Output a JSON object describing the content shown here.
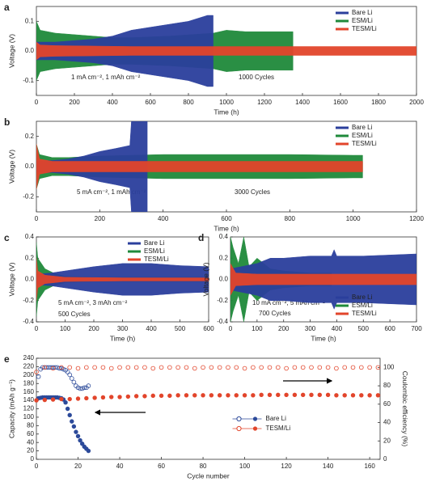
{
  "chart_data": [
    {
      "type": "area",
      "panel_label": "a",
      "x_label": "Time (h)",
      "y_label": "Voltage (V)",
      "annotations": [
        "1 mA cm⁻², 1 mAh cm⁻²",
        "1000 Cycles"
      ],
      "xlim": [
        0,
        2000
      ],
      "xticks": [
        0,
        200,
        400,
        600,
        800,
        1000,
        1200,
        1400,
        1600,
        1800,
        2000
      ],
      "ylim": [
        -0.15,
        0.15
      ],
      "yticks": [
        -0.1,
        {
          "value": 0,
          "label": "0.0"
        },
        0.1
      ],
      "legend": "upper right",
      "series": [
        {
          "name": "Bare Li",
          "color": "#2b3f9c",
          "x": [
            0,
            100,
            200,
            300,
            400,
            500,
            600,
            700,
            800,
            900,
            930
          ],
          "values": [
            0.03,
            0.03,
            0.035,
            0.04,
            0.05,
            0.07,
            0.08,
            0.09,
            0.1,
            0.12,
            0.12
          ]
        },
        {
          "name": "ESM/Li",
          "color": "#1f8a3b",
          "x": [
            0,
            20,
            100,
            200,
            300,
            400,
            500,
            700,
            930,
            1000,
            1100,
            1200,
            1300,
            1350
          ],
          "values": [
            0.1,
            0.07,
            0.06,
            0.055,
            0.05,
            0.045,
            0.045,
            0.05,
            0.06,
            0.07,
            0.065,
            0.065,
            0.065,
            0.065
          ]
        },
        {
          "name": "TESM/Li",
          "color": "#e2452b",
          "x": [
            0,
            20,
            100,
            500,
            1000,
            1500,
            2000
          ],
          "values": [
            0.03,
            0.02,
            0.018,
            0.015,
            0.015,
            0.015,
            0.015
          ]
        }
      ]
    },
    {
      "type": "area",
      "panel_label": "b",
      "x_label": "Time (h)",
      "y_label": "Voltage (V)",
      "annotations": [
        "5 mA cm⁻², 1 mAh cm⁻²",
        "3000 Cycles"
      ],
      "xlim": [
        0,
        1200
      ],
      "xticks": [
        0,
        200,
        400,
        600,
        800,
        1000,
        1200
      ],
      "ylim": [
        -0.3,
        0.3
      ],
      "yticks": [
        -0.2,
        {
          "value": 0,
          "label": "0.0"
        },
        0.2
      ],
      "legend": "upper right",
      "series": [
        {
          "name": "Bare Li",
          "color": "#2b3f9c",
          "x": [
            0,
            50,
            100,
            150,
            200,
            250,
            295,
            300,
            350
          ],
          "values": [
            0.04,
            0.04,
            0.05,
            0.07,
            0.1,
            0.12,
            0.14,
            0.3,
            0.3
          ]
        },
        {
          "name": "ESM/Li",
          "color": "#1f8a3b",
          "x": [
            0,
            10,
            50,
            100,
            200,
            400,
            600,
            800,
            1000,
            1030
          ],
          "values": [
            0.15,
            0.08,
            0.06,
            0.06,
            0.07,
            0.08,
            0.08,
            0.08,
            0.075,
            0.075
          ]
        },
        {
          "name": "TESM/Li",
          "color": "#e2452b",
          "x": [
            0,
            10,
            50,
            200,
            500,
            800,
            1030
          ],
          "values": [
            0.15,
            0.05,
            0.035,
            0.035,
            0.035,
            0.035,
            0.035
          ]
        }
      ]
    },
    {
      "type": "area",
      "panel_label": "c",
      "x_label": "Time (h)",
      "y_label": "Voltage (V)",
      "annotations": [
        "5 mA cm⁻², 3 mAh cm⁻²",
        "500 Cycles"
      ],
      "xlim": [
        0,
        600
      ],
      "xticks": [
        0,
        100,
        200,
        300,
        400,
        500,
        600
      ],
      "ylim": [
        -0.4,
        0.4
      ],
      "yticks": [
        -0.4,
        -0.2,
        {
          "value": 0,
          "label": "0.0"
        },
        0.2,
        0.4
      ],
      "legend": "upper right",
      "series": [
        {
          "name": "Bare Li",
          "color": "#2b3f9c",
          "x": [
            0,
            50,
            100,
            200,
            300,
            400,
            500,
            600
          ],
          "values": [
            0.05,
            0.06,
            0.08,
            0.12,
            0.15,
            0.15,
            0.13,
            0.12
          ]
        },
        {
          "name": "ESM/Li",
          "color": "#1f8a3b",
          "x": [
            0,
            5,
            30,
            60,
            100,
            200,
            400,
            600
          ],
          "values": [
            0.35,
            0.2,
            0.1,
            0.06,
            0.03,
            0.02,
            0.02,
            0.02
          ]
        },
        {
          "name": "TESM/Li",
          "color": "#e2452b",
          "x": [
            0,
            5,
            30,
            100,
            300,
            600
          ],
          "values": [
            0.2,
            0.08,
            0.04,
            0.02,
            0.015,
            0.015
          ]
        }
      ]
    },
    {
      "type": "area",
      "panel_label": "d",
      "x_label": "Time (h)",
      "y_label": "Voltage (V)",
      "annotations": [
        "10 mA cm⁻², 5 mAh cm⁻²",
        "700 Cycles"
      ],
      "xlim": [
        0,
        700
      ],
      "xticks": [
        0,
        100,
        200,
        300,
        400,
        500,
        600,
        700
      ],
      "ylim": [
        -0.4,
        0.4
      ],
      "yticks": [
        -0.4,
        -0.2,
        {
          "value": 0,
          "label": "0.0"
        },
        0.2,
        0.4
      ],
      "legend": "lower right",
      "series": [
        {
          "name": "Bare Li",
          "color": "#2b3f9c",
          "x": [
            0,
            100,
            150,
            200,
            300,
            380,
            390,
            400,
            500,
            600,
            700
          ],
          "values": [
            0.1,
            0.15,
            0.2,
            0.2,
            0.22,
            0.22,
            0.28,
            0.22,
            0.22,
            0.23,
            0.24
          ]
        },
        {
          "name": "ESM/Li",
          "color": "#1f8a3b",
          "x": [
            0,
            10,
            30,
            50,
            70,
            100,
            150,
            200,
            300,
            380
          ],
          "values": [
            0.4,
            0.3,
            0.15,
            0.4,
            0.12,
            0.2,
            0.1,
            0.08,
            0.06,
            0.06
          ]
        },
        {
          "name": "TESM/Li",
          "color": "#e2452b",
          "x": [
            0,
            20,
            100,
            300,
            700
          ],
          "values": [
            0.15,
            0.06,
            0.05,
            0.05,
            0.05
          ]
        }
      ]
    },
    {
      "type": "scatter",
      "panel_label": "e",
      "x_label": "Cycle number",
      "y_label": "Capacity (mAh g⁻¹)",
      "y2_label": "Coulombic efficiency (%)",
      "xlim": [
        0,
        165
      ],
      "xticks": [
        0,
        20,
        40,
        60,
        80,
        100,
        120,
        140,
        160
      ],
      "ylim": [
        0,
        240
      ],
      "yticks": [
        0,
        20,
        40,
        60,
        80,
        100,
        120,
        140,
        160,
        180,
        200,
        220,
        240
      ],
      "y2lim": [
        0,
        110
      ],
      "y2ticks": [
        0,
        20,
        40,
        60,
        80,
        100
      ],
      "legend": "lower center",
      "series": [
        {
          "name": "Bare Li",
          "color": "#2c4a9a",
          "x": [
            1,
            2,
            3,
            4,
            5,
            6,
            7,
            8,
            9,
            10,
            11,
            12,
            13,
            14,
            15,
            16,
            17,
            18,
            19,
            20,
            21,
            22,
            23,
            24,
            25
          ],
          "capacity": [
            145,
            146,
            147,
            147,
            147,
            147,
            147,
            147,
            147,
            147,
            146,
            145,
            142,
            135,
            120,
            105,
            90,
            78,
            65,
            55,
            45,
            37,
            30,
            25,
            20
          ],
          "efficiency": [
            90,
            98,
            100,
            100,
            100,
            100,
            100,
            100,
            100,
            100,
            99,
            99,
            98,
            97,
            95,
            92,
            88,
            84,
            80,
            78,
            77,
            77,
            78,
            78,
            80
          ]
        },
        {
          "name": "TESM/Li",
          "color": "#e2452b",
          "x": [
            0,
            4,
            8,
            12,
            16,
            20,
            24,
            28,
            32,
            36,
            40,
            44,
            48,
            52,
            56,
            60,
            64,
            68,
            72,
            76,
            80,
            84,
            88,
            92,
            96,
            100,
            104,
            108,
            112,
            116,
            120,
            124,
            128,
            132,
            136,
            140,
            144,
            148,
            152,
            156,
            160,
            164
          ],
          "capacity": [
            140,
            141,
            142,
            143,
            143,
            144,
            145,
            146,
            147,
            148,
            148,
            149,
            150,
            150,
            151,
            151,
            151,
            152,
            152,
            152,
            152,
            152,
            152,
            152,
            152,
            152,
            152,
            153,
            153,
            153,
            153,
            153,
            153,
            153,
            153,
            153,
            152,
            152,
            152,
            152,
            152,
            152
          ],
          "efficiency": [
            95,
            100,
            99,
            100,
            100,
            99,
            100,
            100,
            100,
            99,
            100,
            100,
            100,
            100,
            99,
            100,
            100,
            100,
            100,
            99,
            100,
            100,
            100,
            100,
            100,
            99,
            100,
            100,
            100,
            100,
            99,
            100,
            100,
            100,
            100,
            100,
            99,
            100,
            100,
            100,
            100,
            100
          ]
        }
      ]
    }
  ]
}
